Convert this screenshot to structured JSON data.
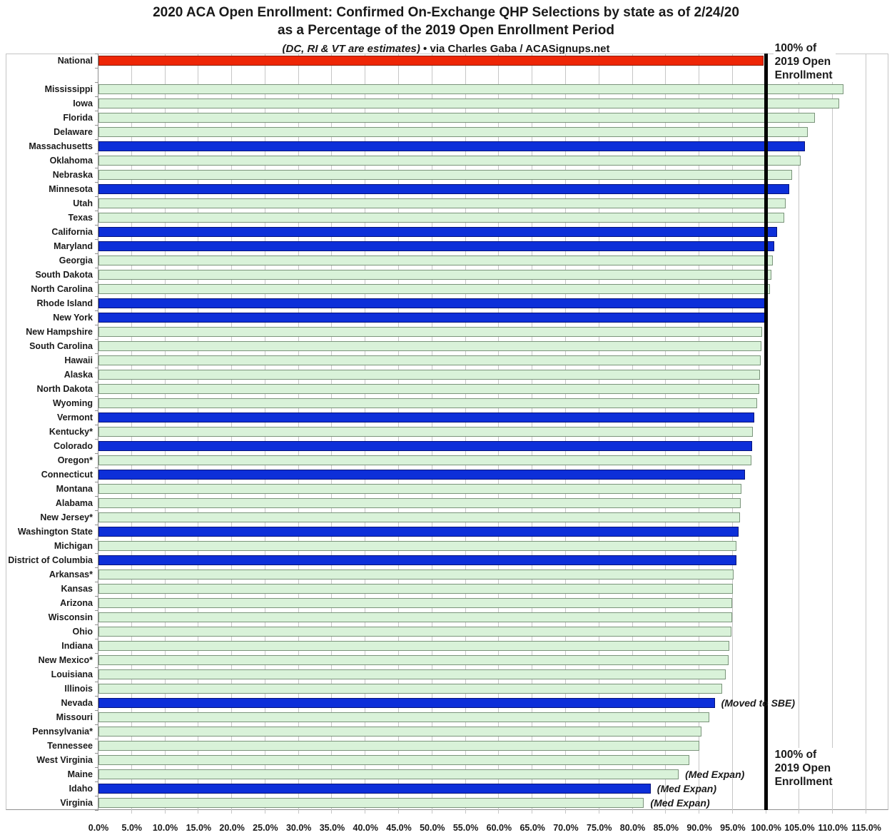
{
  "header": {
    "title_line1": "2020 ACA Open Enrollment: Confirmed On-Exchange QHP Selections by state as of 2/24/20",
    "title_line2": "as a Percentage of the 2019 Open Enrollment Period",
    "note_italic": "(DC, RI & VT are estimates)",
    "note_rest": " • via Charles Gaba / ACASignups.net"
  },
  "chart_data": {
    "type": "bar",
    "orientation": "horizontal",
    "title": "2020 ACA Open Enrollment: Confirmed On-Exchange QHP Selections by state as of 2/24/20 as a Percentage of the 2019 Open Enrollment Period",
    "xlabel": "",
    "ylabel": "",
    "x_min": 0,
    "x_max": 115,
    "x_step": 5,
    "tick_labels": [
      "0.0%",
      "5.0%",
      "10.0%",
      "15.0%",
      "20.0%",
      "25.0%",
      "30.0%",
      "35.0%",
      "40.0%",
      "45.0%",
      "50.0%",
      "55.0%",
      "60.0%",
      "65.0%",
      "70.0%",
      "75.0%",
      "80.0%",
      "85.0%",
      "90.0%",
      "95.0%",
      "100.0%",
      "105.0%",
      "110.0%",
      "115.0%"
    ],
    "grid": true,
    "legend": false,
    "reference_line": {
      "value": 100,
      "color": "#000000",
      "label_lines": [
        "100% of",
        "2019 Open",
        "Enrollment"
      ]
    },
    "colors": {
      "red": {
        "fill": "#ee2606",
        "border": "#8b1a00"
      },
      "blue": {
        "fill": "#0d2fd9",
        "border": "#05127a"
      },
      "green": {
        "fill": "#d9f2d9",
        "border": "#7b947b"
      },
      "gridline": "#c6c6c6"
    },
    "rows": [
      {
        "label": "National",
        "value": 99.6,
        "color": "red"
      },
      {
        "label": "",
        "value": null,
        "color": null
      },
      {
        "label": "Mississippi",
        "value": 111.6,
        "color": "green"
      },
      {
        "label": "Iowa",
        "value": 110.9,
        "color": "green"
      },
      {
        "label": "Florida",
        "value": 107.3,
        "color": "green"
      },
      {
        "label": "Delaware",
        "value": 106.2,
        "color": "green"
      },
      {
        "label": "Massachusetts",
        "value": 105.8,
        "color": "blue"
      },
      {
        "label": "Oklahoma",
        "value": 105.2,
        "color": "green"
      },
      {
        "label": "Nebraska",
        "value": 103.9,
        "color": "green"
      },
      {
        "label": "Minnesota",
        "value": 103.5,
        "color": "blue"
      },
      {
        "label": "Utah",
        "value": 102.9,
        "color": "green"
      },
      {
        "label": "Texas",
        "value": 102.7,
        "color": "green"
      },
      {
        "label": "California",
        "value": 101.6,
        "color": "blue"
      },
      {
        "label": "Maryland",
        "value": 101.2,
        "color": "blue"
      },
      {
        "label": "Georgia",
        "value": 101.0,
        "color": "green"
      },
      {
        "label": "South Dakota",
        "value": 100.8,
        "color": "green"
      },
      {
        "label": "North Carolina",
        "value": 100.6,
        "color": "green"
      },
      {
        "label": "Rhode Island",
        "value": 100.2,
        "color": "blue"
      },
      {
        "label": "New York",
        "value": 100.1,
        "color": "blue"
      },
      {
        "label": "New Hampshire",
        "value": 99.4,
        "color": "green"
      },
      {
        "label": "South Carolina",
        "value": 99.3,
        "color": "green"
      },
      {
        "label": "Hawaii",
        "value": 99.2,
        "color": "green"
      },
      {
        "label": "Alaska",
        "value": 99.1,
        "color": "green"
      },
      {
        "label": "North Dakota",
        "value": 99.0,
        "color": "green"
      },
      {
        "label": "Wyoming",
        "value": 98.7,
        "color": "green"
      },
      {
        "label": "Vermont",
        "value": 98.2,
        "color": "blue"
      },
      {
        "label": "Kentucky*",
        "value": 98.0,
        "color": "green"
      },
      {
        "label": "Colorado",
        "value": 97.9,
        "color": "blue"
      },
      {
        "label": "Oregon*",
        "value": 97.8,
        "color": "green"
      },
      {
        "label": "Connecticut",
        "value": 96.8,
        "color": "blue"
      },
      {
        "label": "Montana",
        "value": 96.3,
        "color": "green"
      },
      {
        "label": "Alabama",
        "value": 96.2,
        "color": "green"
      },
      {
        "label": "New Jersey*",
        "value": 96.1,
        "color": "green"
      },
      {
        "label": "Washington State",
        "value": 95.9,
        "color": "blue"
      },
      {
        "label": "Michigan",
        "value": 95.6,
        "color": "green"
      },
      {
        "label": "District of Columbia",
        "value": 95.5,
        "color": "blue"
      },
      {
        "label": "Arkansas*",
        "value": 95.1,
        "color": "green"
      },
      {
        "label": "Kansas",
        "value": 95.0,
        "color": "green"
      },
      {
        "label": "Arizona",
        "value": 94.9,
        "color": "green"
      },
      {
        "label": "Wisconsin",
        "value": 94.9,
        "color": "green"
      },
      {
        "label": "Ohio",
        "value": 94.8,
        "color": "green"
      },
      {
        "label": "Indiana",
        "value": 94.5,
        "color": "green"
      },
      {
        "label": "New Mexico*",
        "value": 94.4,
        "color": "green"
      },
      {
        "label": "Louisiana",
        "value": 93.9,
        "color": "green"
      },
      {
        "label": "Illinois",
        "value": 93.4,
        "color": "green"
      },
      {
        "label": "Nevada",
        "value": 92.3,
        "color": "blue",
        "annotation": "(Moved to SBE)"
      },
      {
        "label": "Missouri",
        "value": 91.5,
        "color": "green"
      },
      {
        "label": "Pennsylvania*",
        "value": 90.3,
        "color": "green"
      },
      {
        "label": "Tennessee",
        "value": 90.0,
        "color": "green"
      },
      {
        "label": "West Virginia",
        "value": 88.5,
        "color": "green"
      },
      {
        "label": "Maine",
        "value": 86.9,
        "color": "green",
        "annotation": "(Med Expan)"
      },
      {
        "label": "Idaho",
        "value": 82.7,
        "color": "blue",
        "annotation": "(Med Expan)"
      },
      {
        "label": "Virginia",
        "value": 81.7,
        "color": "green",
        "annotation": "(Med Expan)"
      }
    ]
  }
}
